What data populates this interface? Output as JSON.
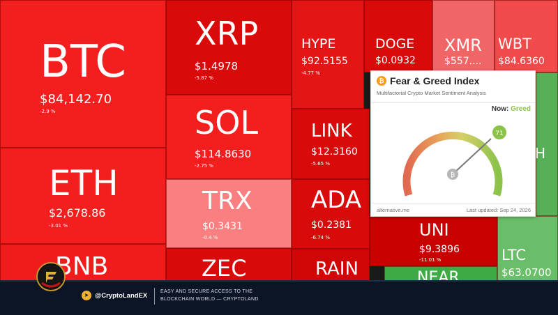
{
  "tiles": [
    {
      "id": "btc",
      "symbol": "BTC",
      "price": "$84,142.70",
      "change": "-2.9 %",
      "color": "#f31e1e"
    },
    {
      "id": "eth",
      "symbol": "ETH",
      "price": "$2,678.86",
      "change": "-3.01 %",
      "color": "#f31e1e"
    },
    {
      "id": "bnb",
      "symbol": "BNB",
      "price": "",
      "change": "",
      "color": "#f01c1c"
    },
    {
      "id": "xrp",
      "symbol": "XRP",
      "price": "$1.4978",
      "change": "-5.87 %",
      "color": "#d90a0a"
    },
    {
      "id": "sol",
      "symbol": "SOL",
      "price": "$114.8630",
      "change": "-2.75 %",
      "color": "#f31e1e"
    },
    {
      "id": "trx",
      "symbol": "TRX",
      "price": "$0.3431",
      "change": "-0.4 %",
      "color": "#f97f80"
    },
    {
      "id": "zec",
      "symbol": "ZEC",
      "price": "",
      "change": "",
      "color": "#d90a0a"
    },
    {
      "id": "hype",
      "symbol": "HYPE",
      "price": "$92.5155",
      "change": "-4.77 %",
      "color": "#e31515"
    },
    {
      "id": "link",
      "symbol": "LINK",
      "price": "$12.3160",
      "change": "-5.65 %",
      "color": "#d90a0a"
    },
    {
      "id": "ada",
      "symbol": "ADA",
      "price": "$0.2381",
      "change": "-6.74 %",
      "color": "#d90a0a"
    },
    {
      "id": "rain",
      "symbol": "RAIN",
      "price": "",
      "change": "",
      "color": "#d10606"
    },
    {
      "id": "doge",
      "symbol": "DOGE",
      "price": "$0.0932",
      "change": "",
      "color": "#d90a0a"
    },
    {
      "id": "xmr",
      "symbol": "XMR",
      "price": "$557....",
      "change": "",
      "color": "#f06666"
    },
    {
      "id": "wbt",
      "symbol": "WBT",
      "price": "$84.6360",
      "change": "",
      "color": "#f04a4a"
    },
    {
      "id": "uni",
      "symbol": "UNI",
      "price": "$9.3896",
      "change": "-11.01 %",
      "color": "#c80000"
    },
    {
      "id": "near",
      "symbol": "NEAR",
      "price": "",
      "change": "",
      "color": "#3daa44"
    },
    {
      "id": "ltc",
      "symbol": "LTC",
      "price": "$63.0700",
      "change": "",
      "color": "#6abe6a"
    }
  ],
  "fear_greed": {
    "title": "Fear & Greed Index",
    "subtitle": "Multifactorial Crypto Market Sentiment Analysis",
    "now_label": "Now:",
    "now_value": "Greed",
    "index_value": "71",
    "source": "alternative.me",
    "updated": "Last updated: Sep 24, 2026"
  },
  "banner": {
    "handle": "@CryptoLandEX",
    "tagline_1": "EASY AND SECURE ACCESS TO THE",
    "tagline_2": "BLOCKCHAIN WORLD — CRYPTOLAND"
  },
  "icons": {
    "telegram": "telegram-icon",
    "bitcoin": "bitcoin-icon",
    "logo": "cryptoland-logo-icon"
  }
}
